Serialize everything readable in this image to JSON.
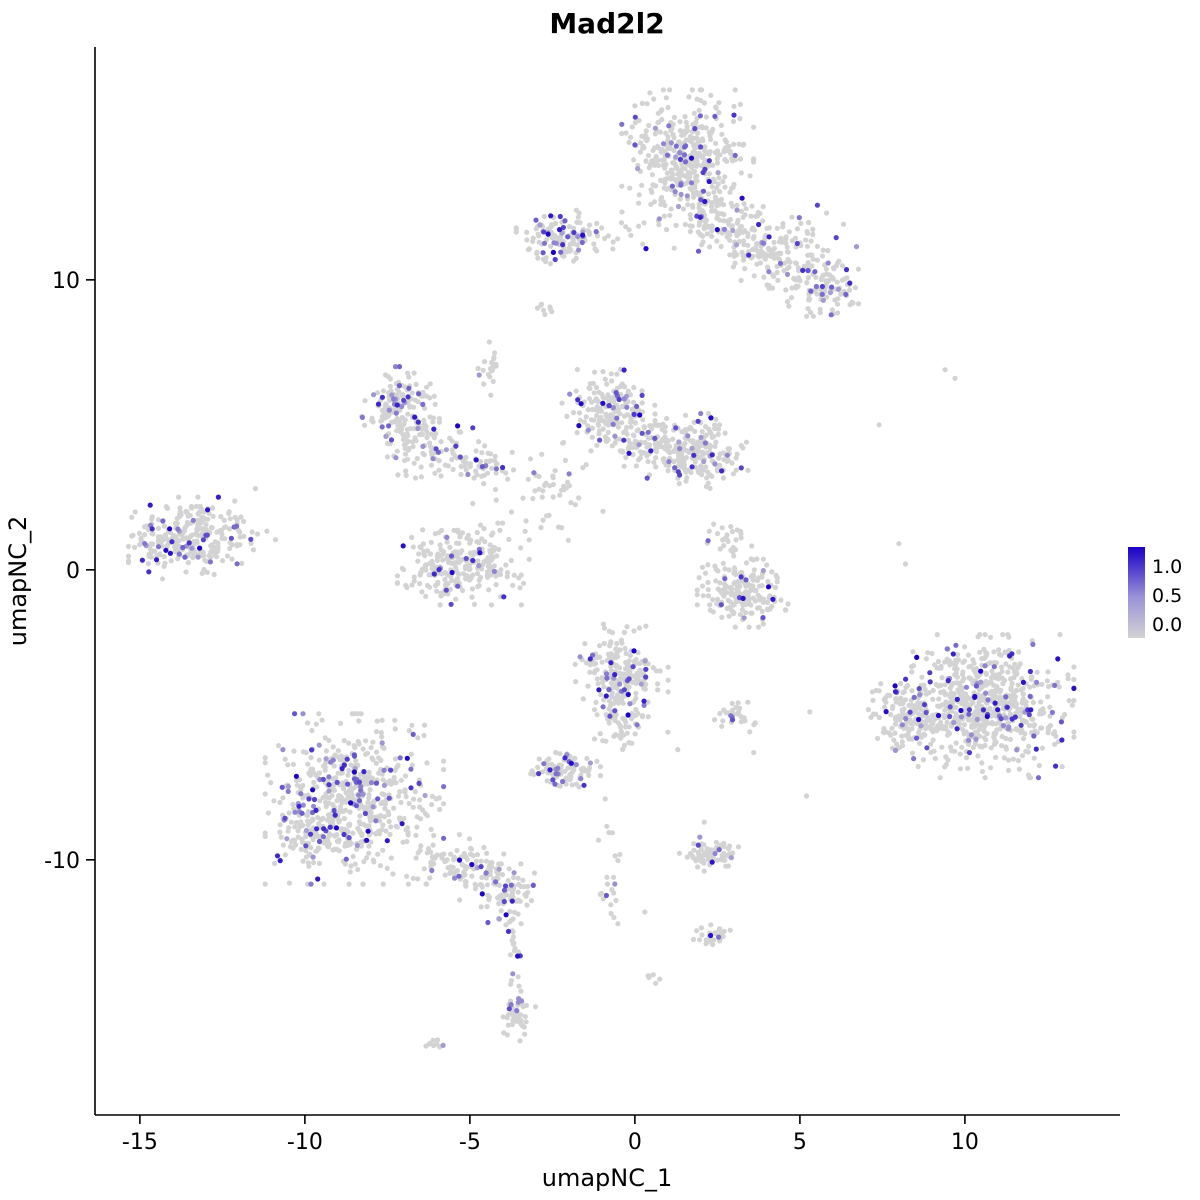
{
  "title": "Mad2l2",
  "axes": {
    "x": {
      "label": "umapNC_1",
      "ticks": [
        -15,
        -10,
        -5,
        0,
        5,
        10
      ]
    },
    "y": {
      "label": "umapNC_2",
      "ticks": [
        -10,
        0,
        10
      ]
    }
  },
  "legend": {
    "labels": [
      "1.0",
      "0.5",
      "0.0"
    ],
    "max_color": "#1a00c7",
    "mid_color": "#9a92d8",
    "min_color": "#d3d3d3"
  },
  "style": {
    "point_color": "#d3d3d3",
    "expr_color": "#1a00c7",
    "point_radius": 2.6,
    "background": "#ffffff"
  },
  "chart_data": {
    "type": "scatter",
    "title": "Mad2l2",
    "xlabel": "umapNC_1",
    "ylabel": "umapNC_2",
    "xlim": [
      -16.36,
      14.7
    ],
    "ylim": [
      -18.8,
      18.03
    ],
    "legend_values": [
      1.0,
      0.5,
      0.0
    ],
    "clusters": [
      {
        "id": "top-main",
        "cx": 1.6,
        "cy": 14.2,
        "sdx": 0.85,
        "sdy": 1.0,
        "n": 420,
        "ef": 0.1
      },
      {
        "id": "top-bridge",
        "cx": 2.6,
        "cy": 12.1,
        "sdx": 0.6,
        "sdy": 0.55,
        "n": 90,
        "ef": 0.08
      },
      {
        "id": "top-arm",
        "cx": 4.1,
        "cy": 10.9,
        "sdx": 0.85,
        "sdy": 0.55,
        "n": 130,
        "ef": 0.08,
        "rot": -0.45
      },
      {
        "id": "top-arm-blob",
        "cx": 5.8,
        "cy": 9.8,
        "sdx": 0.5,
        "sdy": 0.45,
        "n": 110,
        "ef": 0.12
      },
      {
        "id": "top-sparse",
        "cx": 4.6,
        "cy": 11.6,
        "sdx": 0.9,
        "sdy": 0.8,
        "n": 50,
        "ef": 0.06
      },
      {
        "id": "topleft-blob",
        "cx": -2.3,
        "cy": 11.5,
        "sdx": 0.55,
        "sdy": 0.4,
        "n": 120,
        "ef": 0.15
      },
      {
        "id": "topleft-trail",
        "cx": -0.6,
        "cy": 11.5,
        "sdx": 0.7,
        "sdy": 0.2,
        "n": 22,
        "ef": 0.12
      },
      {
        "id": "tiny-nine",
        "cx": -2.7,
        "cy": 9.0,
        "sdx": 0.15,
        "sdy": 0.12,
        "n": 8,
        "ef": 0
      },
      {
        "id": "midleft",
        "cx": -7.1,
        "cy": 5.6,
        "sdx": 0.5,
        "sdy": 0.6,
        "n": 160,
        "ef": 0.18
      },
      {
        "id": "midleft-arc",
        "cx": -6.2,
        "cy": 4.2,
        "sdx": 0.7,
        "sdy": 0.45,
        "n": 80,
        "ef": 0.1
      },
      {
        "id": "midleft-trail",
        "cx": -4.7,
        "cy": 3.6,
        "sdx": 0.5,
        "sdy": 0.35,
        "n": 45,
        "ef": 0.1
      },
      {
        "id": "thin-line-seven",
        "cx": -4.4,
        "cy": 6.8,
        "sdx": 0.15,
        "sdy": 0.45,
        "n": 22,
        "ef": 0.08
      },
      {
        "id": "center-left",
        "cx": -0.8,
        "cy": 5.5,
        "sdx": 0.6,
        "sdy": 0.6,
        "n": 190,
        "ef": 0.12
      },
      {
        "id": "center-bridge",
        "cx": 0.4,
        "cy": 4.4,
        "sdx": 0.55,
        "sdy": 0.4,
        "n": 80,
        "ef": 0.1
      },
      {
        "id": "center-right",
        "cx": 1.9,
        "cy": 4.1,
        "sdx": 0.65,
        "sdy": 0.55,
        "n": 230,
        "ef": 0.1
      },
      {
        "id": "center-sparse",
        "cx": -2.8,
        "cy": 2.9,
        "sdx": 0.9,
        "sdy": 0.8,
        "n": 55,
        "ef": 0.06
      },
      {
        "id": "crescent-left",
        "cx": -5.2,
        "cy": 0.2,
        "sdx": 0.85,
        "sdy": 0.6,
        "n": 270,
        "ef": 0.09
      },
      {
        "id": "farleft",
        "cx": -13.7,
        "cy": 1.1,
        "sdx": 0.7,
        "sdy": 0.6,
        "n": 250,
        "ef": 0.14
      },
      {
        "id": "farleft-tail",
        "cx": -12.3,
        "cy": 1.2,
        "sdx": 0.6,
        "sdy": 0.5,
        "n": 40,
        "ef": 0.05
      },
      {
        "id": "right-crescent",
        "cx": 3.3,
        "cy": -0.8,
        "sdx": 0.6,
        "sdy": 0.5,
        "n": 190,
        "ef": 0.07
      },
      {
        "id": "right-crescent-top",
        "cx": 2.9,
        "cy": 1.0,
        "sdx": 0.3,
        "sdy": 0.35,
        "n": 28,
        "ef": 0.1
      },
      {
        "id": "centerbottom",
        "cx": -0.4,
        "cy": -3.5,
        "sdx": 0.6,
        "sdy": 0.7,
        "n": 210,
        "ef": 0.14
      },
      {
        "id": "centerbottom-tail",
        "cx": -0.4,
        "cy": -5.2,
        "sdx": 0.35,
        "sdy": 0.5,
        "n": 55,
        "ef": 0.08
      },
      {
        "id": "small-right-mid",
        "cx": 3.0,
        "cy": -5.0,
        "sdx": 0.3,
        "sdy": 0.25,
        "n": 28,
        "ef": 0.15
      },
      {
        "id": "small-left-mid",
        "cx": -2.1,
        "cy": -6.9,
        "sdx": 0.45,
        "sdy": 0.3,
        "n": 95,
        "ef": 0.22
      },
      {
        "id": "bottomleft-main",
        "cx": -8.5,
        "cy": -7.9,
        "sdx": 1.15,
        "sdy": 1.25,
        "n": 560,
        "ef": 0.16
      },
      {
        "id": "bottomleft-dense",
        "cx": -9.7,
        "cy": -9.2,
        "sdx": 0.45,
        "sdy": 0.5,
        "n": 90,
        "ef": 0.18
      },
      {
        "id": "bottomleft-arm",
        "cx": -5.2,
        "cy": -10.3,
        "sdx": 0.9,
        "sdy": 0.45,
        "n": 130,
        "ef": 0.12,
        "rot": -0.35
      },
      {
        "id": "bottomleft-arm2",
        "cx": -3.8,
        "cy": -11.2,
        "sdx": 0.35,
        "sdy": 0.45,
        "n": 60,
        "ef": 0.12
      },
      {
        "id": "tail-line",
        "cx": -3.7,
        "cy": -13.2,
        "sdx": 0.12,
        "sdy": 0.9,
        "n": 22,
        "ef": 0.05
      },
      {
        "id": "tail-blob",
        "cx": -3.6,
        "cy": -15.3,
        "sdx": 0.25,
        "sdy": 0.4,
        "n": 45,
        "ef": 0.18
      },
      {
        "id": "tiny-bottom",
        "cx": -6.1,
        "cy": -16.3,
        "sdx": 0.18,
        "sdy": 0.12,
        "n": 10,
        "ef": 0.15
      },
      {
        "id": "thin-center-trail",
        "cx": -0.75,
        "cy": -10.3,
        "sdx": 0.15,
        "sdy": 0.9,
        "n": 22,
        "ef": 0.1
      },
      {
        "id": "tiny-pair",
        "cx": 0.4,
        "cy": -14.1,
        "sdx": 0.15,
        "sdy": 0.12,
        "n": 6,
        "ef": 0
      },
      {
        "id": "small-bottom-mid",
        "cx": 2.2,
        "cy": -9.8,
        "sdx": 0.4,
        "sdy": 0.25,
        "n": 75,
        "ef": 0.12
      },
      {
        "id": "small-bottom-mid2",
        "cx": 2.3,
        "cy": -12.6,
        "sdx": 0.25,
        "sdy": 0.18,
        "n": 30,
        "ef": 0.05
      },
      {
        "id": "right-main",
        "cx": 10.6,
        "cy": -4.7,
        "sdx": 1.15,
        "sdy": 1.05,
        "n": 720,
        "ef": 0.1
      },
      {
        "id": "right-lobe",
        "cx": 8.3,
        "cy": -5.1,
        "sdx": 0.55,
        "sdy": 0.6,
        "n": 130,
        "ef": 0.1
      }
    ],
    "singles": [
      [
        8.0,
        0.9
      ],
      [
        8.2,
        0.2
      ],
      [
        9.4,
        6.9
      ],
      [
        9.7,
        6.6
      ],
      [
        7.4,
        5.0
      ],
      [
        5.2,
        -7.8
      ],
      [
        3.6,
        -6.3
      ],
      [
        2.1,
        -8.7
      ],
      [
        -11.5,
        2.8
      ],
      [
        5.3,
        -4.9
      ],
      [
        0.3,
        -11.8
      ],
      [
        -0.9,
        -7.9
      ],
      [
        1.0,
        -5.6
      ],
      [
        1.3,
        -6.2
      ]
    ]
  }
}
